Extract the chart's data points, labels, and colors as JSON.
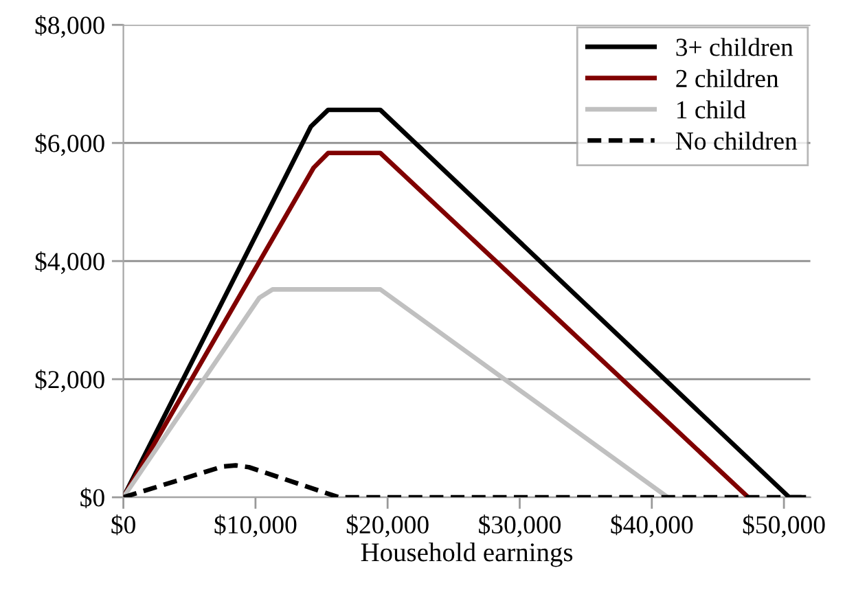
{
  "chart_data": {
    "type": "line",
    "xlabel": "Household earnings",
    "xlim": [
      0,
      52000
    ],
    "xticks": [
      {
        "value": 0,
        "label": "$0"
      },
      {
        "value": 10000,
        "label": "$10,000"
      },
      {
        "value": 20000,
        "label": "$20,000"
      },
      {
        "value": 30000,
        "label": "$30,000"
      },
      {
        "value": 40000,
        "label": "$40,000"
      },
      {
        "value": 50000,
        "label": "$50,000"
      }
    ],
    "ylim": [
      0,
      8000
    ],
    "yticks": [
      {
        "value": 0,
        "label": "$0"
      },
      {
        "value": 2000,
        "label": "$2,000"
      },
      {
        "value": 4000,
        "label": "$4,000"
      },
      {
        "value": 6000,
        "label": "$6,000"
      },
      {
        "value": 8000,
        "label": "$8,000"
      }
    ],
    "grid": "y",
    "legend": "top right",
    "marker": "none",
    "series": [
      {
        "name": "3+ children",
        "color": "#000000",
        "line_style": "solid",
        "x": [
          0,
          14200,
          15500,
          19450,
          50400,
          51500
        ],
        "values": [
          0,
          6280,
          6560,
          6560,
          0,
          0
        ]
      },
      {
        "name": "2 children",
        "color": "#800000",
        "line_style": "solid",
        "x": [
          0,
          14400,
          15500,
          19450,
          47300
        ],
        "values": [
          0,
          5580,
          5830,
          5830,
          0
        ]
      },
      {
        "name": "1 child",
        "color": "#c0c0c0",
        "line_style": "solid",
        "x": [
          0,
          10300,
          11300,
          19450,
          41200
        ],
        "values": [
          0,
          3380,
          3520,
          3520,
          0
        ]
      },
      {
        "name": "No children",
        "color": "#000000",
        "line_style": "dashed",
        "x": [
          0,
          7500,
          8500,
          9500,
          16300,
          51500
        ],
        "values": [
          0,
          520,
          540,
          510,
          0,
          0
        ]
      }
    ]
  }
}
